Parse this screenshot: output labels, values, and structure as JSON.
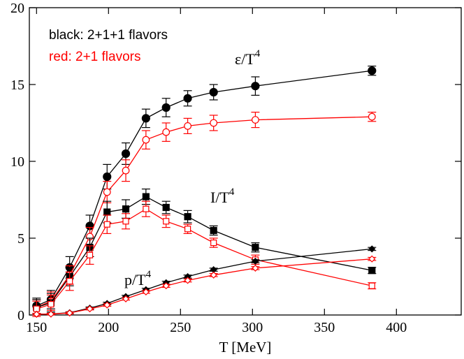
{
  "chart_data": {
    "type": "scatter",
    "title": "",
    "xlabel": "T [MeV]",
    "ylabel": "",
    "xlim": [
      145,
      445
    ],
    "ylim": [
      0,
      20
    ],
    "x_ticks": [
      150,
      200,
      250,
      300,
      350,
      400
    ],
    "y_ticks": [
      0,
      5,
      10,
      15,
      20
    ],
    "grid": false,
    "legend_lines": [
      {
        "text": "black: 2+1+1 flavors",
        "color": "#000000"
      },
      {
        "text": "red: 2+1 flavors",
        "color": "#ff0000"
      }
    ],
    "annotations": [
      {
        "base": "ε/T",
        "sup": "4",
        "x": 330,
        "y": 16.6
      },
      {
        "base": "I/T",
        "sup": "4",
        "x": 250,
        "y": 7.3
      },
      {
        "base": "p/T",
        "sup": "4",
        "x": 192,
        "y": 2.0
      }
    ],
    "series": [
      {
        "color": "#000000",
        "marker": "circle",
        "filled": true,
        "x": [
          150,
          160,
          173,
          187,
          199,
          212,
          226,
          240,
          255,
          273,
          302,
          383
        ],
        "y": [
          0.6,
          1.0,
          3.1,
          5.8,
          9.0,
          10.5,
          12.8,
          13.5,
          14.1,
          14.5,
          14.9,
          15.9
        ],
        "err": [
          0.5,
          0.6,
          0.7,
          0.7,
          0.8,
          0.7,
          0.6,
          0.6,
          0.5,
          0.5,
          0.6,
          0.3
        ]
      },
      {
        "color": "#ff0000",
        "marker": "circle",
        "filled": false,
        "x": [
          150,
          160,
          173,
          187,
          199,
          212,
          226,
          240,
          255,
          273,
          302,
          383
        ],
        "y": [
          0.5,
          0.9,
          2.6,
          5.1,
          8.0,
          9.4,
          11.4,
          11.9,
          12.3,
          12.5,
          12.7,
          12.9
        ],
        "err": [
          0.5,
          0.6,
          0.6,
          0.6,
          0.7,
          0.7,
          0.6,
          0.6,
          0.5,
          0.5,
          0.5,
          0.3
        ]
      },
      {
        "color": "#000000",
        "marker": "square",
        "filled": true,
        "x": [
          150,
          160,
          173,
          187,
          199,
          212,
          226,
          240,
          255,
          273,
          302,
          383
        ],
        "y": [
          0.5,
          0.8,
          2.5,
          4.4,
          6.7,
          6.9,
          7.7,
          7.0,
          6.4,
          5.5,
          4.4,
          2.9
        ],
        "err": [
          0.5,
          0.6,
          0.6,
          0.6,
          0.7,
          0.6,
          0.5,
          0.4,
          0.4,
          0.3,
          0.3,
          0.2
        ]
      },
      {
        "color": "#ff0000",
        "marker": "square",
        "filled": false,
        "x": [
          150,
          160,
          173,
          187,
          199,
          212,
          226,
          240,
          255,
          273,
          302,
          383
        ],
        "y": [
          0.4,
          0.7,
          2.2,
          3.9,
          5.9,
          6.1,
          6.9,
          6.1,
          5.6,
          4.7,
          3.6,
          1.9
        ],
        "err": [
          0.5,
          0.6,
          0.6,
          0.6,
          0.6,
          0.5,
          0.5,
          0.4,
          0.3,
          0.3,
          0.3,
          0.2
        ]
      },
      {
        "color": "#000000",
        "marker": "diamond",
        "filled": true,
        "x": [
          150,
          160,
          173,
          187,
          199,
          212,
          226,
          240,
          255,
          273,
          302,
          383
        ],
        "y": [
          0.05,
          0.07,
          0.15,
          0.45,
          0.75,
          1.2,
          1.65,
          2.1,
          2.5,
          2.95,
          3.5,
          4.3
        ],
        "err": [
          0.05,
          0.05,
          0.06,
          0.07,
          0.08,
          0.08,
          0.09,
          0.1,
          0.1,
          0.1,
          0.1,
          0.1
        ]
      },
      {
        "color": "#ff0000",
        "marker": "diamond",
        "filled": false,
        "x": [
          150,
          160,
          173,
          187,
          199,
          212,
          226,
          240,
          255,
          273,
          302,
          383
        ],
        "y": [
          0.05,
          0.06,
          0.13,
          0.4,
          0.65,
          1.05,
          1.5,
          1.9,
          2.25,
          2.6,
          3.05,
          3.65
        ],
        "err": [
          0.05,
          0.05,
          0.06,
          0.07,
          0.08,
          0.08,
          0.09,
          0.1,
          0.1,
          0.1,
          0.1,
          0.1
        ]
      }
    ]
  }
}
